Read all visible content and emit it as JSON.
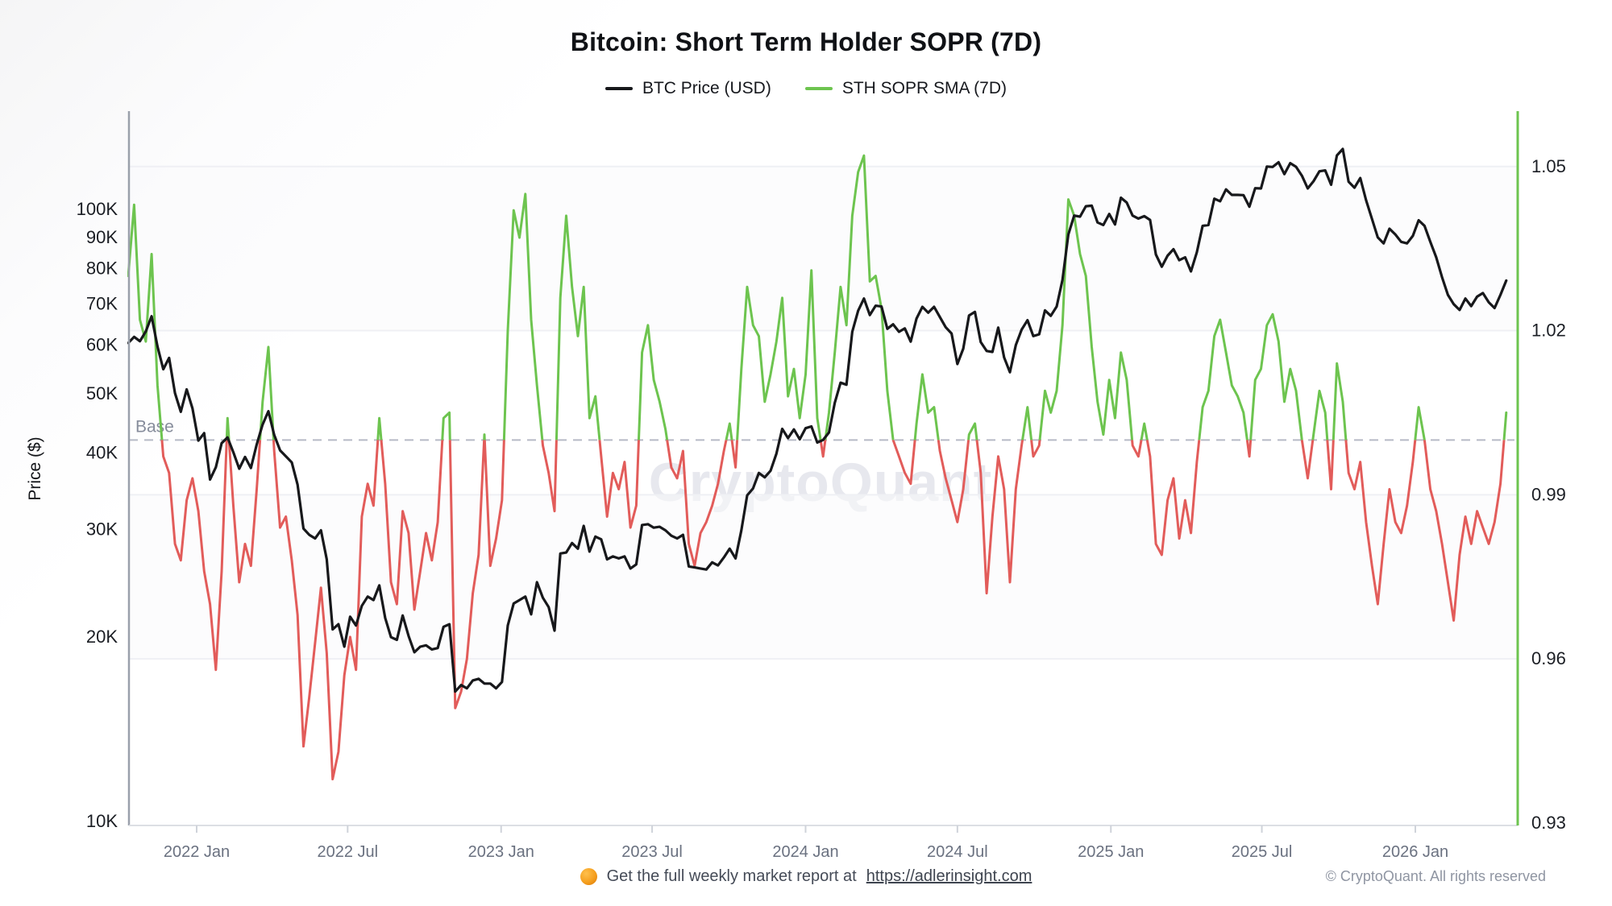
{
  "header": {
    "title": "Bitcoin: Short Term Holder SOPR (7D)"
  },
  "legend": [
    {
      "label": "BTC Price (USD)",
      "color": "#17181b"
    },
    {
      "label": "STH SOPR SMA (7D)",
      "color": "#6dc44f"
    }
  ],
  "watermark": "CryptoQuant",
  "base_line": {
    "label": "Base",
    "value": 1.0
  },
  "axes": {
    "left": {
      "title": "Price ($)",
      "scale": "log",
      "ticks": [
        {
          "label": "100K",
          "value": 100
        },
        {
          "label": "90K",
          "value": 90
        },
        {
          "label": "80K",
          "value": 80
        },
        {
          "label": "70K",
          "value": 70
        },
        {
          "label": "60K",
          "value": 60
        },
        {
          "label": "50K",
          "value": 50
        },
        {
          "label": "40K",
          "value": 40
        },
        {
          "label": "30K",
          "value": 30
        },
        {
          "label": "20K",
          "value": 20
        },
        {
          "label": "10K",
          "value": 10
        }
      ]
    },
    "right": {
      "scale": "linear",
      "ticks": [
        {
          "label": "1.05",
          "value": 1.05
        },
        {
          "label": "1.02",
          "value": 1.02
        },
        {
          "label": "0.99",
          "value": 0.99
        },
        {
          "label": "0.96",
          "value": 0.96
        },
        {
          "label": "0.93",
          "value": 0.93
        }
      ]
    },
    "x": {
      "ticks": [
        {
          "label": "2022 Jan",
          "date": "2022-01-01"
        },
        {
          "label": "2022 Jul",
          "date": "2022-07-01"
        },
        {
          "label": "2023 Jan",
          "date": "2023-01-01"
        },
        {
          "label": "2023 Jul",
          "date": "2023-07-01"
        },
        {
          "label": "2024 Jan",
          "date": "2024-01-01"
        },
        {
          "label": "2024 Jul",
          "date": "2024-07-01"
        },
        {
          "label": "2025 Jan",
          "date": "2025-01-01"
        },
        {
          "label": "2025 Jul",
          "date": "2025-07-01"
        },
        {
          "label": "2026 Jan",
          "date": "2026-01-01"
        }
      ]
    }
  },
  "footer": {
    "icon": "orange-circle-icon",
    "text": "Get the full weekly market report at",
    "link": "https://adlerinsight.com",
    "copyright": "© CryptoQuant. All rights reserved"
  },
  "colors": {
    "price_line": "#17181b",
    "sopr_above_base": "#6dc44f",
    "sopr_below_base": "#e25c5a",
    "base_dash": "#b6bac6",
    "base_label": "#868c9b",
    "left_axis": "#9aa0ab",
    "right_axis": "#6dc44f",
    "bottom_axis": "#dcdfe4",
    "gridline": "#eff0f4",
    "band": "#fafafc",
    "ylabel_text": "#1b1e24",
    "xlabel_text": "#6a7180",
    "watermark": "#e7e8ee"
  },
  "chart_data": {
    "type": "line",
    "title": "Bitcoin: Short Term Holder SOPR (7D)",
    "xlabel": "",
    "ylabel_left": "Price ($)",
    "left_axis_range_usd_k": [
      10,
      144
    ],
    "right_axis_range": [
      0.928,
      1.06
    ],
    "x_range": [
      "2021-10-11",
      "2026-05-01"
    ],
    "grid": "horizontal-faint",
    "legend_position": "top-center",
    "series": [
      {
        "name": "BTC Price (USD)",
        "axis": "left",
        "scale": "log",
        "unit": "USD thousands",
        "color": "#17181b",
        "start_date": "2021-10-11",
        "interval_days": 7,
        "values_usd_k": [
          60.5,
          61.9,
          60.9,
          63.2,
          66.9,
          59.7,
          54.8,
          57.2,
          50.1,
          46.7,
          50.8,
          47.3,
          41.9,
          43.1,
          36.2,
          37.9,
          41.5,
          42.4,
          40.1,
          37.7,
          39.4,
          37.8,
          41.3,
          44.5,
          46.8,
          42.8,
          40.4,
          39.5,
          38.6,
          35.5,
          30.1,
          29.4,
          29.0,
          29.9,
          26.8,
          20.6,
          21.0,
          19.3,
          21.6,
          20.9,
          22.5,
          23.3,
          23.0,
          24.3,
          21.5,
          20.0,
          19.8,
          21.7,
          20.1,
          18.9,
          19.3,
          19.4,
          19.1,
          19.2,
          20.8,
          21.0,
          16.3,
          16.7,
          16.5,
          17.0,
          17.1,
          16.8,
          16.8,
          16.5,
          16.9,
          20.9,
          22.7,
          23.0,
          23.3,
          21.8,
          24.6,
          23.2,
          22.4,
          20.5,
          27.4,
          27.5,
          28.5,
          27.9,
          30.4,
          27.6,
          29.2,
          28.9,
          26.8,
          27.1,
          26.9,
          27.1,
          25.9,
          26.3,
          30.5,
          30.6,
          30.2,
          30.3,
          29.9,
          29.3,
          29.0,
          29.4,
          26.1,
          26.0,
          25.9,
          25.8,
          26.5,
          26.2,
          27.0,
          27.9,
          26.9,
          29.9,
          34.1,
          35.0,
          37.1,
          36.5,
          37.4,
          39.9,
          43.8,
          42.3,
          43.7,
          42.1,
          43.9,
          44.2,
          41.6,
          42.0,
          43.2,
          48.3,
          52.1,
          51.7,
          63.1,
          68.3,
          71.5,
          67.2,
          69.6,
          69.4,
          63.8,
          64.9,
          63.1,
          63.9,
          60.8,
          66.3,
          69.3,
          67.8,
          69.3,
          66.7,
          64.2,
          62.7,
          55.9,
          59.2,
          67.1,
          68.0,
          60.7,
          58.7,
          58.5,
          64.1,
          57.3,
          54.2,
          60.0,
          63.6,
          65.9,
          62.1,
          62.5,
          68.4,
          67.0,
          69.4,
          76.7,
          91.0,
          97.7,
          97.3,
          101.2,
          101.4,
          95.2,
          94.3,
          98.3,
          94.5,
          104.5,
          102.6,
          97.7,
          96.6,
          97.5,
          96.1,
          84.4,
          80.6,
          84.0,
          86.1,
          82.6,
          83.5,
          79.2,
          85.1,
          94.0,
          94.3,
          104.1,
          103.1,
          107.8,
          105.6,
          105.6,
          105.5,
          101.0,
          108.3,
          108.2,
          117.5,
          117.3,
          119.4,
          114.2,
          119.0,
          117.4,
          113.5,
          108.2,
          111.2,
          115.4,
          115.8,
          109.7,
          122.5,
          125.5,
          111.0,
          108.5,
          112.5,
          103.5,
          96.5,
          90.0,
          88.0,
          93.0,
          91.0,
          88.5,
          88.0,
          90.5,
          96.0,
          94.0,
          88.5,
          83.5,
          77.5,
          72.5,
          70.0,
          68.5,
          71.5,
          69.5,
          72.0,
          73.0,
          70.5,
          69.0,
          72.5,
          76.5
        ]
      },
      {
        "name": "STH SOPR SMA (7D)",
        "axis": "right",
        "scale": "linear",
        "base": 1.0,
        "color_above_base": "#6dc44f",
        "color_below_base": "#e25c5a",
        "start_date": "2021-10-11",
        "interval_days": 7,
        "values": [
          1.03,
          1.043,
          1.022,
          1.018,
          1.034,
          1.01,
          0.997,
          0.994,
          0.981,
          0.978,
          0.989,
          0.993,
          0.987,
          0.976,
          0.97,
          0.958,
          0.976,
          1.004,
          0.988,
          0.974,
          0.981,
          0.977,
          0.991,
          1.007,
          1.017,
          0.998,
          0.984,
          0.986,
          0.978,
          0.968,
          0.944,
          0.953,
          0.963,
          0.973,
          0.961,
          0.938,
          0.943,
          0.957,
          0.964,
          0.958,
          0.986,
          0.992,
          0.988,
          1.004,
          0.992,
          0.974,
          0.97,
          0.987,
          0.983,
          0.969,
          0.976,
          0.983,
          0.978,
          0.985,
          1.004,
          1.005,
          0.951,
          0.954,
          0.96,
          0.972,
          0.979,
          1.001,
          0.977,
          0.982,
          0.989,
          1.02,
          1.042,
          1.037,
          1.045,
          1.022,
          1.01,
          0.999,
          0.994,
          0.987,
          1.026,
          1.041,
          1.028,
          1.019,
          1.028,
          1.004,
          1.008,
          0.997,
          0.986,
          0.994,
          0.991,
          0.996,
          0.984,
          0.988,
          1.016,
          1.021,
          1.011,
          1.007,
          1.002,
          0.995,
          0.993,
          0.998,
          0.981,
          0.977,
          0.983,
          0.985,
          0.988,
          0.992,
          0.998,
          1.003,
          0.995,
          1.013,
          1.028,
          1.021,
          1.019,
          1.007,
          1.012,
          1.018,
          1.026,
          1.008,
          1.013,
          1.004,
          1.012,
          1.031,
          1.004,
          0.997,
          1.005,
          1.016,
          1.028,
          1.021,
          1.041,
          1.049,
          1.052,
          1.029,
          1.03,
          1.024,
          1.009,
          1.0,
          0.997,
          0.994,
          0.992,
          1.003,
          1.012,
          1.005,
          1.006,
          0.998,
          0.993,
          0.989,
          0.985,
          0.991,
          1.001,
          1.003,
          0.994,
          0.972,
          0.986,
          0.997,
          0.991,
          0.974,
          0.991,
          0.999,
          1.006,
          0.997,
          0.999,
          1.009,
          1.005,
          1.009,
          1.021,
          1.044,
          1.041,
          1.034,
          1.03,
          1.017,
          1.007,
          1.001,
          1.011,
          1.004,
          1.016,
          1.011,
          0.999,
          0.997,
          1.003,
          0.997,
          0.981,
          0.979,
          0.989,
          0.993,
          0.982,
          0.989,
          0.983,
          0.996,
          1.006,
          1.009,
          1.019,
          1.022,
          1.016,
          1.01,
          1.008,
          1.005,
          0.997,
          1.011,
          1.013,
          1.021,
          1.023,
          1.018,
          1.007,
          1.013,
          1.009,
          1.0,
          0.993,
          1.001,
          1.009,
          1.005,
          0.991,
          1.014,
          1.007,
          0.994,
          0.991,
          0.996,
          0.985,
          0.977,
          0.97,
          0.981,
          0.991,
          0.985,
          0.983,
          0.988,
          0.996,
          1.006,
          1.0,
          0.991,
          0.987,
          0.981,
          0.974,
          0.967,
          0.979,
          0.986,
          0.981,
          0.987,
          0.984,
          0.981,
          0.985,
          0.992,
          1.005
        ]
      }
    ]
  }
}
